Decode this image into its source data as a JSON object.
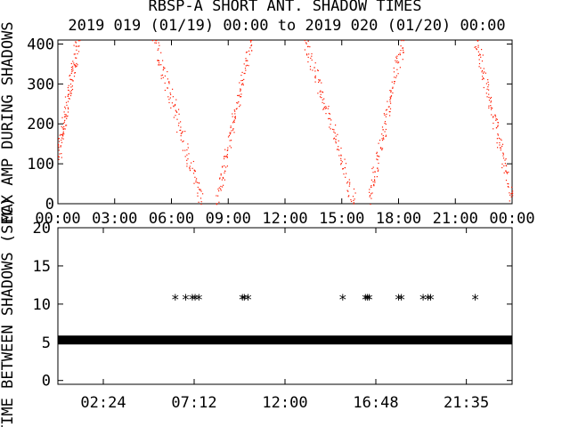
{
  "title": "RBSP-A SHORT ANT. SHADOW TIMES",
  "subtitle": "2019 019 (01/19) 00:00 to 2019 020 (01/20) 00:00",
  "colors": {
    "amp": "#ff1a00",
    "axis": "#000000",
    "background": "#ffffff"
  },
  "chart_data": [
    {
      "type": "scatter",
      "ylabel": "MAX AMP DURING SHADOWS",
      "ylim": [
        0,
        410
      ],
      "yticks": [
        "0",
        "100",
        "200",
        "300",
        "400"
      ],
      "xlim": [
        0,
        24
      ],
      "xticks": [
        "00:00",
        "03:00",
        "06:00",
        "09:00",
        "12:00",
        "15:00",
        "18:00",
        "21:00",
        "00:00"
      ],
      "series": [
        {
          "color": "#ff1a00",
          "ramps": [
            {
              "x": [
                0.0,
                1.05
              ],
              "y": [
                120,
                410
              ]
            },
            {
              "x": [
                5.05,
                7.6
              ],
              "y": [
                410,
                5
              ]
            },
            {
              "x": [
                8.4,
                10.15
              ],
              "y": [
                5,
                410
              ]
            },
            {
              "x": [
                13.05,
                15.65
              ],
              "y": [
                410,
                5
              ]
            },
            {
              "x": [
                16.4,
                18.2
              ],
              "y": [
                5,
                410
              ]
            },
            {
              "x": [
                22.05,
                24.0
              ],
              "y": [
                410,
                15
              ]
            }
          ]
        }
      ]
    },
    {
      "type": "scatter",
      "ylabel": "TIME BETWEEN SHADOWS (SEC)",
      "ylim": [
        -0.5,
        20
      ],
      "yticks": [
        "0",
        "5",
        "10",
        "15",
        "20"
      ],
      "xlim": [
        0,
        24
      ],
      "xticks": [
        "02:24",
        "07:12",
        "12:00",
        "16:48",
        "21:35"
      ],
      "series": [
        {
          "marker": "*",
          "baseline_y": 5.3,
          "points_x": [
            6.2,
            6.75,
            7.1,
            7.25,
            7.45,
            9.75,
            9.85,
            10.05,
            15.05,
            16.25,
            16.35,
            16.45,
            18.0,
            18.15,
            19.3,
            19.55,
            19.7,
            22.05
          ],
          "points_y": [
            10.8,
            10.8,
            10.8,
            10.8,
            10.8,
            10.8,
            10.8,
            10.8,
            10.8,
            10.8,
            10.8,
            10.8,
            10.8,
            10.8,
            10.8,
            10.8,
            10.8,
            10.8
          ]
        }
      ]
    }
  ]
}
